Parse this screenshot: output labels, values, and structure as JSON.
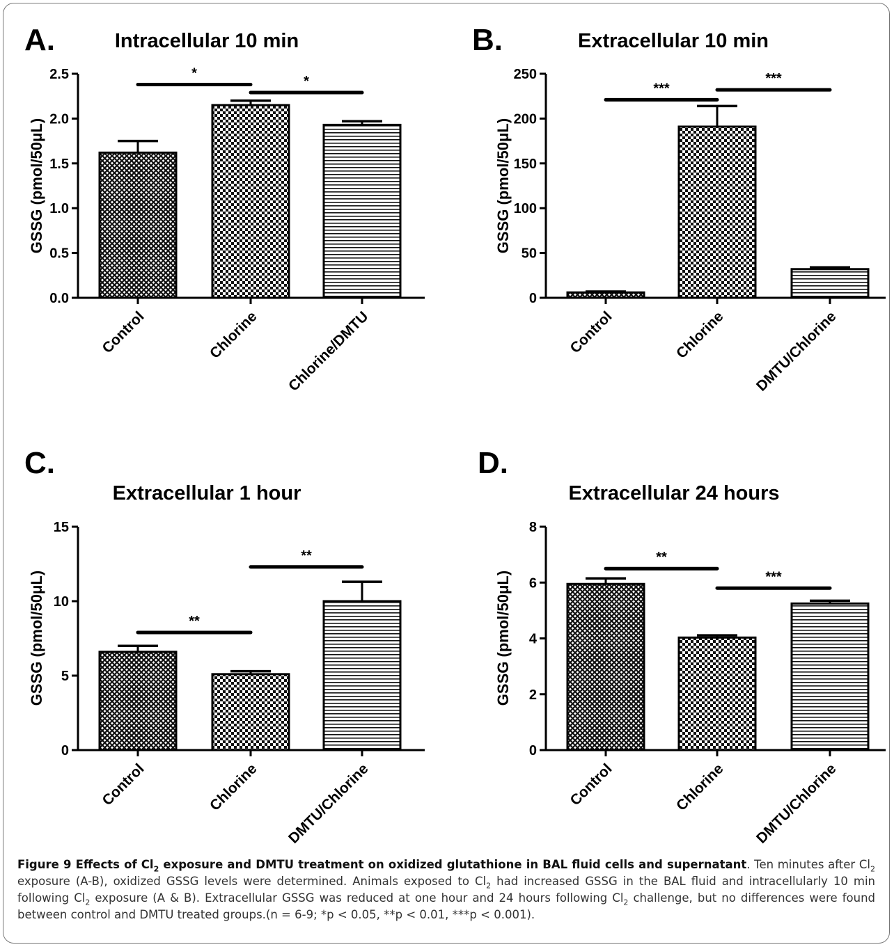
{
  "chart_data": [
    {
      "type": "bar",
      "panel": "A.",
      "title": "Intracellular 10 min",
      "ylabel": "GSSG (pmol/50μL)",
      "ylim": [
        0,
        2.5
      ],
      "yticks": [
        "0.0",
        "0.5",
        "1.0",
        "1.5",
        "2.0",
        "2.5"
      ],
      "categories": [
        "Control",
        "Chlorine",
        "Chlorine/DMTU"
      ],
      "values": [
        1.62,
        2.15,
        1.93
      ],
      "errors": [
        0.13,
        0.05,
        0.04
      ],
      "patterns": [
        "crosshatch",
        "checker",
        "hlines"
      ],
      "significance": [
        {
          "from": 0,
          "to": 1,
          "level": 2.38,
          "label": "*"
        },
        {
          "from": 1,
          "to": 2,
          "level": 2.29,
          "label": "*"
        }
      ]
    },
    {
      "type": "bar",
      "panel": "B.",
      "title": "Extracellular 10 min",
      "ylabel": "GSSG (pmol/50μL)",
      "ylim": [
        0,
        250
      ],
      "yticks": [
        "0",
        "50",
        "100",
        "150",
        "200",
        "250"
      ],
      "categories": [
        "Control",
        "Chlorine",
        "DMTU/Chlorine"
      ],
      "values": [
        6,
        191,
        32
      ],
      "errors": [
        1,
        23,
        2
      ],
      "patterns": [
        "crosshatch",
        "checker",
        "hlines"
      ],
      "significance": [
        {
          "from": 0,
          "to": 1,
          "level": 221,
          "label": "***"
        },
        {
          "from": 1,
          "to": 2,
          "level": 232,
          "label": "***"
        }
      ]
    },
    {
      "type": "bar",
      "panel": "C.",
      "title": "Extracellular 1 hour",
      "ylabel": "GSSG (pmol/50μL)",
      "ylim": [
        0,
        15
      ],
      "yticks": [
        "0",
        "5",
        "10",
        "15"
      ],
      "categories": [
        "Control",
        "Chlorine",
        "DMTU/Chlorine"
      ],
      "values": [
        6.6,
        5.1,
        10.0
      ],
      "errors": [
        0.4,
        0.2,
        1.3
      ],
      "patterns": [
        "crosshatch",
        "checker",
        "hlines"
      ],
      "significance": [
        {
          "from": 0,
          "to": 1,
          "level": 7.9,
          "label": "**"
        },
        {
          "from": 1,
          "to": 2,
          "level": 12.3,
          "label": "**"
        }
      ]
    },
    {
      "type": "bar",
      "panel": "D.",
      "title": "Extracellular 24 hours",
      "ylabel": "GSSG (pmol/50μL)",
      "ylim": [
        0,
        8
      ],
      "yticks": [
        "0",
        "2",
        "4",
        "6",
        "8"
      ],
      "categories": [
        "Control",
        "Chlorine",
        "DMTU/Chlorine"
      ],
      "values": [
        5.95,
        4.03,
        5.25
      ],
      "errors": [
        0.2,
        0.08,
        0.1
      ],
      "patterns": [
        "crosshatch",
        "checker",
        "hlines"
      ],
      "significance": [
        {
          "from": 0,
          "to": 1,
          "level": 6.5,
          "label": "**"
        },
        {
          "from": 1,
          "to": 2,
          "level": 5.8,
          "label": "***"
        }
      ]
    }
  ],
  "caption": {
    "figure_label": "Figure 9",
    "title_part1": " Effects of Cl",
    "title_sub": "2",
    "title_part2": " exposure and DMTU treatment on oxidized glutathione in BAL fluid cells and supernatant",
    "body": [
      ". Ten minutes after Cl",
      "2",
      " exposure (A-B), oxidized GSSG levels were determined. Animals exposed to Cl",
      "2",
      " had increased GSSG in the BAL fluid and intracellularly 10 min following Cl",
      "2",
      " exposure (A & B). Extracellular GSSG was reduced at one hour and 24 hours following Cl",
      "2",
      " challenge, but no differences were found between control and DMTU treated groups.(n = 6-9; *p < 0.05, **p < 0.01, ***p < 0.001)."
    ]
  }
}
